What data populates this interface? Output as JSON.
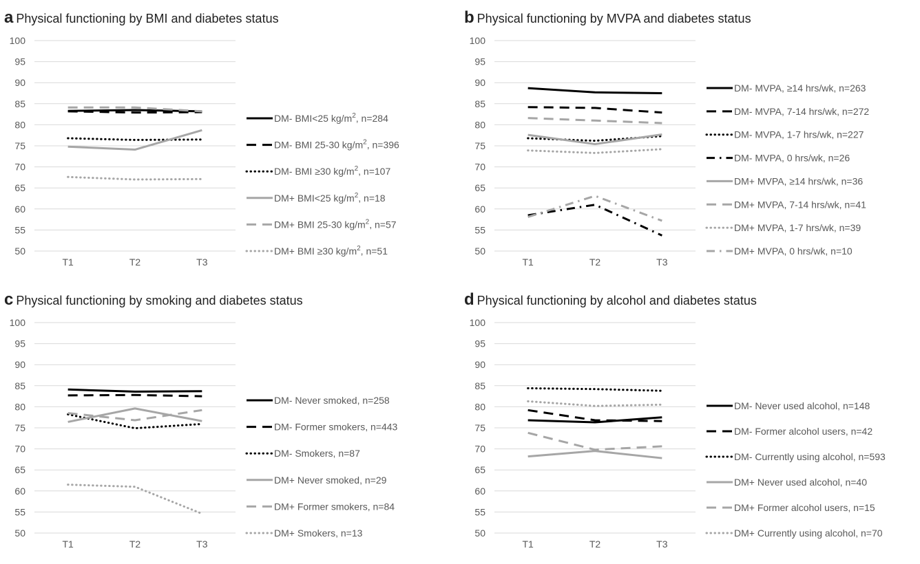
{
  "panels": [
    {
      "letter": "a",
      "title": "Physical functioning by BMI and diabetes status",
      "legend": [
        {
          "text": "DM-  BMI<25 kg/m",
          "sup": "2",
          "rest": ", n=284"
        },
        {
          "text": "DM-  BMI 25-30 kg/m",
          "sup": "2",
          "rest": ", n=396"
        },
        {
          "text": "DM-  BMI ≥30 kg/m",
          "sup": "2",
          "rest": ", n=107"
        },
        {
          "text": "DM+ BMI<25 kg/m",
          "sup": "2",
          "rest": ", n=18"
        },
        {
          "text": "DM+ BMI 25-30 kg/m",
          "sup": "2",
          "rest": ", n=57"
        },
        {
          "text": "DM+ BMI ≥30 kg/m",
          "sup": "2",
          "rest": ", n=51"
        }
      ]
    },
    {
      "letter": "b",
      "title": "Physical functioning by MVPA and diabetes status",
      "legend": [
        {
          "text": "DM-  MVPA, ≥14 hrs/wk, n=263"
        },
        {
          "text": "DM-  MVPA, 7-14 hrs/wk, n=272"
        },
        {
          "text": "DM-  MVPA, 1-7 hrs/wk, n=227"
        },
        {
          "text": "DM-  MVPA, 0 hrs/wk, n=26"
        },
        {
          "text": "DM+ MVPA, ≥14 hrs/wk, n=36"
        },
        {
          "text": "DM+ MVPA, 7-14 hrs/wk, n=41"
        },
        {
          "text": "DM+ MVPA, 1-7 hrs/wk, n=39"
        },
        {
          "text": "DM+ MVPA, 0 hrs/wk, n=10"
        }
      ]
    },
    {
      "letter": "c",
      "title": "Physical functioning by smoking and diabetes status",
      "legend": [
        {
          "text": "DM-  Never smoked, n=258"
        },
        {
          "text": "DM-  Former smokers, n=443"
        },
        {
          "text": "DM-  Smokers, n=87"
        },
        {
          "text": "DM+ Never smoked, n=29"
        },
        {
          "text": "DM+ Former smokers, n=84"
        },
        {
          "text": "DM+ Smokers, n=13"
        }
      ]
    },
    {
      "letter": "d",
      "title": "Physical functioning by alcohol and diabetes status",
      "legend": [
        {
          "text": "DM-  Never used alcohol, n=148"
        },
        {
          "text": "DM-  Former alcohol users, n=42"
        },
        {
          "text": "DM-  Currently using alcohol, n=593"
        },
        {
          "text": "DM+ Never used alcohol, n=40"
        },
        {
          "text": "DM+ Former alcohol users, n=15"
        },
        {
          "text": "DM+ Currently using alcohol, n=70"
        }
      ]
    }
  ],
  "chart_data": [
    {
      "type": "line",
      "x": [
        "T1",
        "T2",
        "T3"
      ],
      "yticks": [
        50,
        55,
        60,
        65,
        70,
        75,
        80,
        85,
        90,
        95,
        100
      ],
      "ylim": [
        50,
        100
      ],
      "grid": true,
      "legend_position": "right",
      "series": [
        {
          "name": "DM-  BMI<25 kg/m2, n=284",
          "values": [
            83.3,
            83.5,
            83.2
          ],
          "color": "#000000",
          "style": "solid"
        },
        {
          "name": "DM-  BMI 25-30 kg/m2, n=396",
          "values": [
            83.2,
            82.9,
            83.0
          ],
          "color": "#000000",
          "style": "dash"
        },
        {
          "name": "DM-  BMI ≥30 kg/m2, n=107",
          "values": [
            76.8,
            76.4,
            76.5
          ],
          "color": "#000000",
          "style": "dot"
        },
        {
          "name": "DM+ BMI<25 kg/m2, n=18",
          "values": [
            74.8,
            74.1,
            78.7
          ],
          "color": "#a6a6a6",
          "style": "solid"
        },
        {
          "name": "DM+ BMI 25-30 kg/m2, n=57",
          "values": [
            84.1,
            84.1,
            83.2
          ],
          "color": "#a6a6a6",
          "style": "dash"
        },
        {
          "name": "DM+ BMI ≥30 kg/m2, n=51",
          "values": [
            67.6,
            67.0,
            67.1
          ],
          "color": "#a6a6a6",
          "style": "dot"
        }
      ]
    },
    {
      "type": "line",
      "x": [
        "T1",
        "T2",
        "T3"
      ],
      "yticks": [
        50,
        55,
        60,
        65,
        70,
        75,
        80,
        85,
        90,
        95,
        100
      ],
      "ylim": [
        50,
        100
      ],
      "grid": true,
      "legend_position": "right",
      "series": [
        {
          "name": "DM-  MVPA, ≥14 hrs/wk, n=263",
          "values": [
            88.7,
            87.7,
            87.5
          ],
          "color": "#000000",
          "style": "solid"
        },
        {
          "name": "DM-  MVPA, 7-14 hrs/wk, n=272",
          "values": [
            84.2,
            84.0,
            82.9
          ],
          "color": "#000000",
          "style": "dash"
        },
        {
          "name": "DM-  MVPA, 1-7 hrs/wk, n=227",
          "values": [
            76.8,
            76.2,
            77.3
          ],
          "color": "#000000",
          "style": "dot"
        },
        {
          "name": "DM-  MVPA, 0 hrs/wk, n=26",
          "values": [
            58.5,
            61.0,
            53.7
          ],
          "color": "#000000",
          "style": "dashdot"
        },
        {
          "name": "DM+ MVPA, ≥14 hrs/wk, n=36",
          "values": [
            77.6,
            75.4,
            77.7
          ],
          "color": "#a6a6a6",
          "style": "solid"
        },
        {
          "name": "DM+ MVPA, 7-14 hrs/wk, n=41",
          "values": [
            81.6,
            81.0,
            80.4
          ],
          "color": "#a6a6a6",
          "style": "dash"
        },
        {
          "name": "DM+ MVPA, 1-7 hrs/wk, n=39",
          "values": [
            73.9,
            73.3,
            74.2
          ],
          "color": "#a6a6a6",
          "style": "dot"
        },
        {
          "name": "DM+ MVPA, 0 hrs/wk, n=10",
          "values": [
            58.1,
            63.1,
            57.2
          ],
          "color": "#a6a6a6",
          "style": "dashdot"
        }
      ]
    },
    {
      "type": "line",
      "x": [
        "T1",
        "T2",
        "T3"
      ],
      "yticks": [
        50,
        55,
        60,
        65,
        70,
        75,
        80,
        85,
        90,
        95,
        100
      ],
      "ylim": [
        50,
        100
      ],
      "grid": true,
      "legend_position": "right",
      "series": [
        {
          "name": "DM-  Never smoked, n=258",
          "values": [
            84.1,
            83.6,
            83.7
          ],
          "color": "#000000",
          "style": "solid"
        },
        {
          "name": "DM-  Former smokers, n=443",
          "values": [
            82.7,
            82.8,
            82.5
          ],
          "color": "#000000",
          "style": "dash"
        },
        {
          "name": "DM-  Smokers, n=87",
          "values": [
            78.2,
            74.9,
            75.9
          ],
          "color": "#000000",
          "style": "dot"
        },
        {
          "name": "DM+ Never smoked, n=29",
          "values": [
            76.4,
            79.6,
            76.6
          ],
          "color": "#a6a6a6",
          "style": "solid"
        },
        {
          "name": "DM+ Former smokers, n=84",
          "values": [
            78.5,
            76.8,
            79.2
          ],
          "color": "#a6a6a6",
          "style": "dash"
        },
        {
          "name": "DM+ Smokers, n=13",
          "values": [
            61.5,
            61.0,
            54.6
          ],
          "color": "#a6a6a6",
          "style": "dot"
        }
      ]
    },
    {
      "type": "line",
      "x": [
        "T1",
        "T2",
        "T3"
      ],
      "yticks": [
        50,
        55,
        60,
        65,
        70,
        75,
        80,
        85,
        90,
        95,
        100
      ],
      "ylim": [
        50,
        100
      ],
      "grid": true,
      "legend_position": "right",
      "series": [
        {
          "name": "DM-  Never used alcohol, n=148",
          "values": [
            76.8,
            76.3,
            77.5
          ],
          "color": "#000000",
          "style": "solid"
        },
        {
          "name": "DM-  Former alcohol users, n=42",
          "values": [
            79.2,
            76.8,
            76.6
          ],
          "color": "#000000",
          "style": "dash"
        },
        {
          "name": "DM-  Currently using alcohol, n=593",
          "values": [
            84.4,
            84.2,
            83.8
          ],
          "color": "#000000",
          "style": "dot"
        },
        {
          "name": "DM+ Never used alcohol, n=40",
          "values": [
            68.2,
            69.5,
            67.8
          ],
          "color": "#a6a6a6",
          "style": "solid"
        },
        {
          "name": "DM+ Former alcohol users, n=15",
          "values": [
            73.8,
            69.8,
            70.6
          ],
          "color": "#a6a6a6",
          "style": "dash"
        },
        {
          "name": "DM+ Currently using alcohol, n=70",
          "values": [
            81.3,
            80.2,
            80.5
          ],
          "color": "#a6a6a6",
          "style": "dot"
        }
      ]
    }
  ]
}
